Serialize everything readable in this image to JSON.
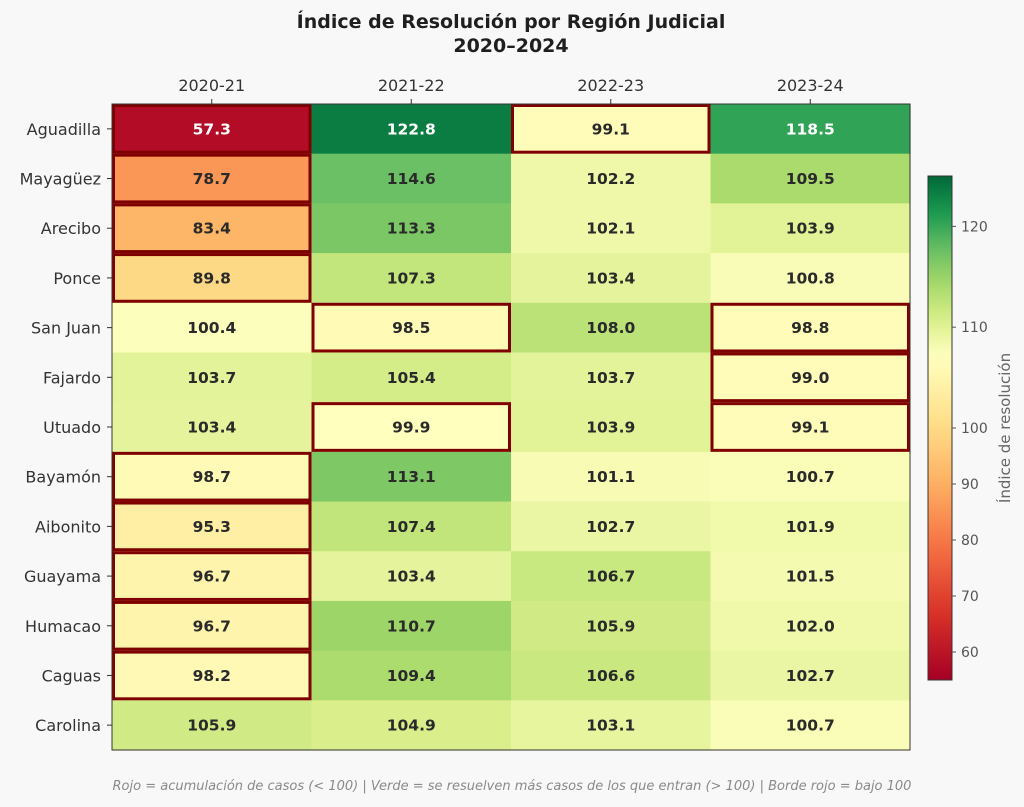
{
  "chart_data": {
    "type": "heatmap",
    "title": "Índice de Resolución por Región Judicial",
    "subtitle": "2020–2024",
    "columns": [
      "2020-21",
      "2021-22",
      "2022-23",
      "2023-24"
    ],
    "rows": [
      "Aguadilla",
      "Mayagüez",
      "Arecibo",
      "Ponce",
      "San Juan",
      "Fajardo",
      "Utuado",
      "Bayamón",
      "Aibonito",
      "Guayama",
      "Humacao",
      "Caguas",
      "Carolina"
    ],
    "values": [
      [
        57.3,
        122.8,
        99.1,
        118.5
      ],
      [
        78.7,
        114.6,
        102.2,
        109.5
      ],
      [
        83.4,
        113.3,
        102.1,
        103.9
      ],
      [
        89.8,
        107.3,
        103.4,
        100.8
      ],
      [
        100.4,
        98.5,
        108.0,
        98.8
      ],
      [
        103.7,
        105.4,
        103.7,
        99.0
      ],
      [
        103.4,
        99.9,
        103.9,
        99.1
      ],
      [
        98.7,
        113.1,
        101.1,
        100.7
      ],
      [
        95.3,
        107.4,
        102.7,
        101.9
      ],
      [
        96.7,
        103.4,
        106.7,
        101.5
      ],
      [
        96.7,
        110.7,
        105.9,
        102.0
      ],
      [
        98.2,
        109.4,
        106.6,
        102.7
      ],
      [
        105.9,
        104.9,
        103.1,
        100.7
      ]
    ],
    "threshold": 100,
    "colorbar": {
      "label": "Índice de resolución",
      "range": [
        55,
        125
      ],
      "ticks": [
        60,
        70,
        80,
        90,
        100,
        110,
        120
      ],
      "colormap": "RdYlGn",
      "center": 100
    },
    "highlight_border_color": "#7f0000"
  },
  "footer": "Rojo = acumulación de casos (< 100)  |  Verde = se resuelven más casos de los que entran (> 100)  |  Borde rojo = bajo 100"
}
